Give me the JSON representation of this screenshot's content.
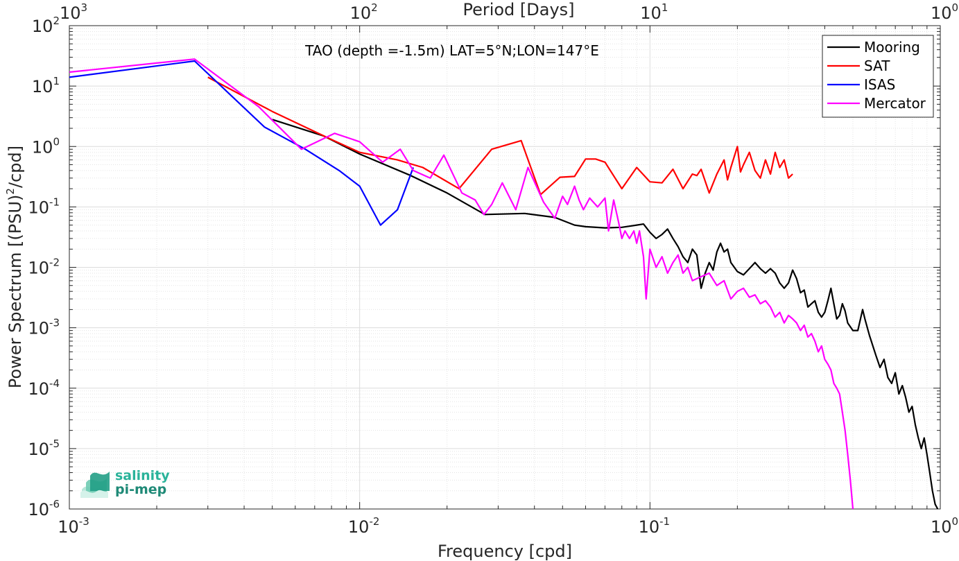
{
  "chart_data": {
    "type": "line",
    "title": "TAO (depth =-1.5m) LAT=5°N;LON=147°E",
    "xlabel": "Frequency [cpd]",
    "ylabel_main": "Power Spectrum [(PSU)",
    "ylabel_sup": "2",
    "ylabel_tail": "/cpd]",
    "top_axis_label": "Period [Days]",
    "x_scale": "log",
    "y_scale": "log",
    "xlim": [
      0.001,
      1
    ],
    "ylim": [
      1e-06,
      100
    ],
    "grid": true,
    "legend_position": "top-right",
    "x_ticks": [
      {
        "value": 0.001,
        "base": "10",
        "exp": "-3"
      },
      {
        "value": 0.01,
        "base": "10",
        "exp": "-2"
      },
      {
        "value": 0.1,
        "base": "10",
        "exp": "-1"
      },
      {
        "value": 1,
        "base": "10",
        "exp": "0"
      }
    ],
    "top_ticks": [
      {
        "value": 0.001,
        "base": "10",
        "exp": "3"
      },
      {
        "value": 0.01,
        "base": "10",
        "exp": "2"
      },
      {
        "value": 0.1,
        "base": "10",
        "exp": "1"
      },
      {
        "value": 1,
        "base": "10",
        "exp": "0"
      }
    ],
    "y_ticks": [
      {
        "value": 100,
        "base": "10",
        "exp": "2"
      },
      {
        "value": 10,
        "base": "10",
        "exp": "1"
      },
      {
        "value": 1,
        "base": "10",
        "exp": "0"
      },
      {
        "value": 0.1,
        "base": "10",
        "exp": "-1"
      },
      {
        "value": 0.01,
        "base": "10",
        "exp": "-2"
      },
      {
        "value": 0.001,
        "base": "10",
        "exp": "-3"
      },
      {
        "value": 0.0001,
        "base": "10",
        "exp": "-4"
      },
      {
        "value": 1e-05,
        "base": "10",
        "exp": "-5"
      },
      {
        "value": 1e-06,
        "base": "10",
        "exp": "-6"
      }
    ],
    "series": [
      {
        "name": "Mooring",
        "color": "#000000",
        "points": [
          [
            0.005,
            2.8
          ],
          [
            0.0075,
            1.5
          ],
          [
            0.01,
            0.75
          ],
          [
            0.015,
            0.33
          ],
          [
            0.02,
            0.17
          ],
          [
            0.027,
            0.075
          ],
          [
            0.037,
            0.078
          ],
          [
            0.047,
            0.067
          ],
          [
            0.055,
            0.05
          ],
          [
            0.06,
            0.047
          ],
          [
            0.07,
            0.045
          ],
          [
            0.08,
            0.046
          ],
          [
            0.09,
            0.05
          ],
          [
            0.095,
            0.052
          ],
          [
            0.1,
            0.038
          ],
          [
            0.105,
            0.03
          ],
          [
            0.11,
            0.035
          ],
          [
            0.115,
            0.043
          ],
          [
            0.12,
            0.03
          ],
          [
            0.125,
            0.022
          ],
          [
            0.13,
            0.015
          ],
          [
            0.135,
            0.012
          ],
          [
            0.14,
            0.02
          ],
          [
            0.145,
            0.016
          ],
          [
            0.15,
            0.0045
          ],
          [
            0.155,
            0.008
          ],
          [
            0.16,
            0.012
          ],
          [
            0.165,
            0.009
          ],
          [
            0.17,
            0.018
          ],
          [
            0.175,
            0.025
          ],
          [
            0.18,
            0.018
          ],
          [
            0.185,
            0.02
          ],
          [
            0.19,
            0.012
          ],
          [
            0.2,
            0.0085
          ],
          [
            0.21,
            0.0075
          ],
          [
            0.22,
            0.0095
          ],
          [
            0.23,
            0.012
          ],
          [
            0.24,
            0.0095
          ],
          [
            0.25,
            0.008
          ],
          [
            0.26,
            0.0095
          ],
          [
            0.27,
            0.008
          ],
          [
            0.28,
            0.0055
          ],
          [
            0.29,
            0.0045
          ],
          [
            0.3,
            0.0055
          ],
          [
            0.31,
            0.009
          ],
          [
            0.32,
            0.0065
          ],
          [
            0.33,
            0.0038
          ],
          [
            0.34,
            0.0042
          ],
          [
            0.35,
            0.0022
          ],
          [
            0.36,
            0.0025
          ],
          [
            0.37,
            0.0028
          ],
          [
            0.38,
            0.0018
          ],
          [
            0.39,
            0.0015
          ],
          [
            0.4,
            0.0018
          ],
          [
            0.41,
            0.0028
          ],
          [
            0.42,
            0.0045
          ],
          [
            0.43,
            0.0025
          ],
          [
            0.44,
            0.0014
          ],
          [
            0.45,
            0.0016
          ],
          [
            0.46,
            0.0025
          ],
          [
            0.47,
            0.0019
          ],
          [
            0.48,
            0.0012
          ],
          [
            0.5,
            0.0009
          ],
          [
            0.52,
            0.0009
          ],
          [
            0.54,
            0.002
          ],
          [
            0.55,
            0.0014
          ],
          [
            0.57,
            0.00075
          ],
          [
            0.6,
            0.00035
          ],
          [
            0.62,
            0.00022
          ],
          [
            0.64,
            0.0003
          ],
          [
            0.66,
            0.00015
          ],
          [
            0.68,
            0.00012
          ],
          [
            0.7,
            0.00018
          ],
          [
            0.72,
            8e-05
          ],
          [
            0.74,
            0.00011
          ],
          [
            0.76,
            7e-05
          ],
          [
            0.78,
            4e-05
          ],
          [
            0.8,
            5e-05
          ],
          [
            0.82,
            2.5e-05
          ],
          [
            0.84,
            1.5e-05
          ],
          [
            0.86,
            1e-05
          ],
          [
            0.88,
            1.5e-05
          ],
          [
            0.9,
            8e-06
          ],
          [
            0.92,
            4e-06
          ],
          [
            0.94,
            2e-06
          ],
          [
            0.96,
            1.2e-06
          ],
          [
            0.98,
            1e-06
          ]
        ]
      },
      {
        "name": "SAT",
        "color": "#ff0000",
        "points": [
          [
            0.003,
            14
          ],
          [
            0.005,
            3.8
          ],
          [
            0.008,
            1.3
          ],
          [
            0.01,
            0.8
          ],
          [
            0.0135,
            0.6
          ],
          [
            0.0165,
            0.45
          ],
          [
            0.022,
            0.2
          ],
          [
            0.0285,
            0.9
          ],
          [
            0.036,
            1.25
          ],
          [
            0.042,
            0.16
          ],
          [
            0.049,
            0.31
          ],
          [
            0.055,
            0.32
          ],
          [
            0.06,
            0.62
          ],
          [
            0.065,
            0.62
          ],
          [
            0.07,
            0.55
          ],
          [
            0.08,
            0.2
          ],
          [
            0.09,
            0.45
          ],
          [
            0.1,
            0.26
          ],
          [
            0.11,
            0.25
          ],
          [
            0.12,
            0.42
          ],
          [
            0.13,
            0.2
          ],
          [
            0.14,
            0.35
          ],
          [
            0.145,
            0.33
          ],
          [
            0.15,
            0.42
          ],
          [
            0.16,
            0.17
          ],
          [
            0.17,
            0.35
          ],
          [
            0.18,
            0.6
          ],
          [
            0.185,
            0.28
          ],
          [
            0.19,
            0.45
          ],
          [
            0.2,
            1.0
          ],
          [
            0.205,
            0.38
          ],
          [
            0.21,
            0.5
          ],
          [
            0.22,
            0.8
          ],
          [
            0.23,
            0.4
          ],
          [
            0.24,
            0.3
          ],
          [
            0.25,
            0.6
          ],
          [
            0.26,
            0.35
          ],
          [
            0.27,
            0.8
          ],
          [
            0.28,
            0.45
          ],
          [
            0.29,
            0.6
          ],
          [
            0.3,
            0.3
          ],
          [
            0.31,
            0.35
          ]
        ]
      },
      {
        "name": "ISAS",
        "color": "#0000ff",
        "points": [
          [
            0.001,
            14
          ],
          [
            0.0027,
            26
          ],
          [
            0.0047,
            2.1
          ],
          [
            0.0065,
            0.9
          ],
          [
            0.0085,
            0.4
          ],
          [
            0.01,
            0.22
          ],
          [
            0.0118,
            0.05
          ],
          [
            0.0135,
            0.09
          ],
          [
            0.0153,
            0.45
          ]
        ]
      },
      {
        "name": "Mercator",
        "color": "#ff00ff",
        "points": [
          [
            0.001,
            17
          ],
          [
            0.0027,
            28
          ],
          [
            0.0045,
            4.5
          ],
          [
            0.0063,
            0.9
          ],
          [
            0.0082,
            1.65
          ],
          [
            0.01,
            1.2
          ],
          [
            0.012,
            0.55
          ],
          [
            0.0138,
            0.9
          ],
          [
            0.0153,
            0.4
          ],
          [
            0.0175,
            0.3
          ],
          [
            0.0195,
            0.72
          ],
          [
            0.0225,
            0.17
          ],
          [
            0.025,
            0.13
          ],
          [
            0.0268,
            0.075
          ],
          [
            0.0285,
            0.11
          ],
          [
            0.031,
            0.25
          ],
          [
            0.0345,
            0.09
          ],
          [
            0.038,
            0.45
          ],
          [
            0.043,
            0.12
          ],
          [
            0.047,
            0.065
          ],
          [
            0.05,
            0.15
          ],
          [
            0.052,
            0.11
          ],
          [
            0.055,
            0.22
          ],
          [
            0.057,
            0.13
          ],
          [
            0.059,
            0.09
          ],
          [
            0.062,
            0.14
          ],
          [
            0.066,
            0.1
          ],
          [
            0.07,
            0.14
          ],
          [
            0.072,
            0.04
          ],
          [
            0.075,
            0.13
          ],
          [
            0.078,
            0.055
          ],
          [
            0.08,
            0.03
          ],
          [
            0.082,
            0.04
          ],
          [
            0.085,
            0.03
          ],
          [
            0.088,
            0.04
          ],
          [
            0.09,
            0.025
          ],
          [
            0.092,
            0.04
          ],
          [
            0.095,
            0.015
          ],
          [
            0.097,
            0.003
          ],
          [
            0.1,
            0.02
          ],
          [
            0.105,
            0.01
          ],
          [
            0.11,
            0.015
          ],
          [
            0.115,
            0.008
          ],
          [
            0.12,
            0.012
          ],
          [
            0.125,
            0.016
          ],
          [
            0.13,
            0.008
          ],
          [
            0.135,
            0.01
          ],
          [
            0.14,
            0.006
          ],
          [
            0.15,
            0.007
          ],
          [
            0.16,
            0.008
          ],
          [
            0.17,
            0.005
          ],
          [
            0.18,
            0.006
          ],
          [
            0.19,
            0.003
          ],
          [
            0.2,
            0.004
          ],
          [
            0.21,
            0.0045
          ],
          [
            0.22,
            0.0032
          ],
          [
            0.23,
            0.0035
          ],
          [
            0.24,
            0.0025
          ],
          [
            0.25,
            0.0028
          ],
          [
            0.26,
            0.0022
          ],
          [
            0.27,
            0.0015
          ],
          [
            0.28,
            0.0018
          ],
          [
            0.29,
            0.0012
          ],
          [
            0.3,
            0.0016
          ],
          [
            0.31,
            0.0014
          ],
          [
            0.32,
            0.0012
          ],
          [
            0.33,
            0.0009
          ],
          [
            0.34,
            0.0011
          ],
          [
            0.35,
            0.0007
          ],
          [
            0.36,
            0.0008
          ],
          [
            0.37,
            0.0006
          ],
          [
            0.38,
            0.0004
          ],
          [
            0.39,
            0.0005
          ],
          [
            0.4,
            0.0003
          ],
          [
            0.41,
            0.00025
          ],
          [
            0.42,
            0.0002
          ],
          [
            0.43,
            0.00012
          ],
          [
            0.44,
            0.0001
          ],
          [
            0.45,
            8e-05
          ],
          [
            0.46,
            4e-05
          ],
          [
            0.47,
            2e-05
          ],
          [
            0.48,
            8e-06
          ],
          [
            0.49,
            3e-06
          ],
          [
            0.5,
            1e-06
          ]
        ]
      }
    ]
  },
  "logo": {
    "line1": "salinity",
    "line2": "pi-mep"
  }
}
